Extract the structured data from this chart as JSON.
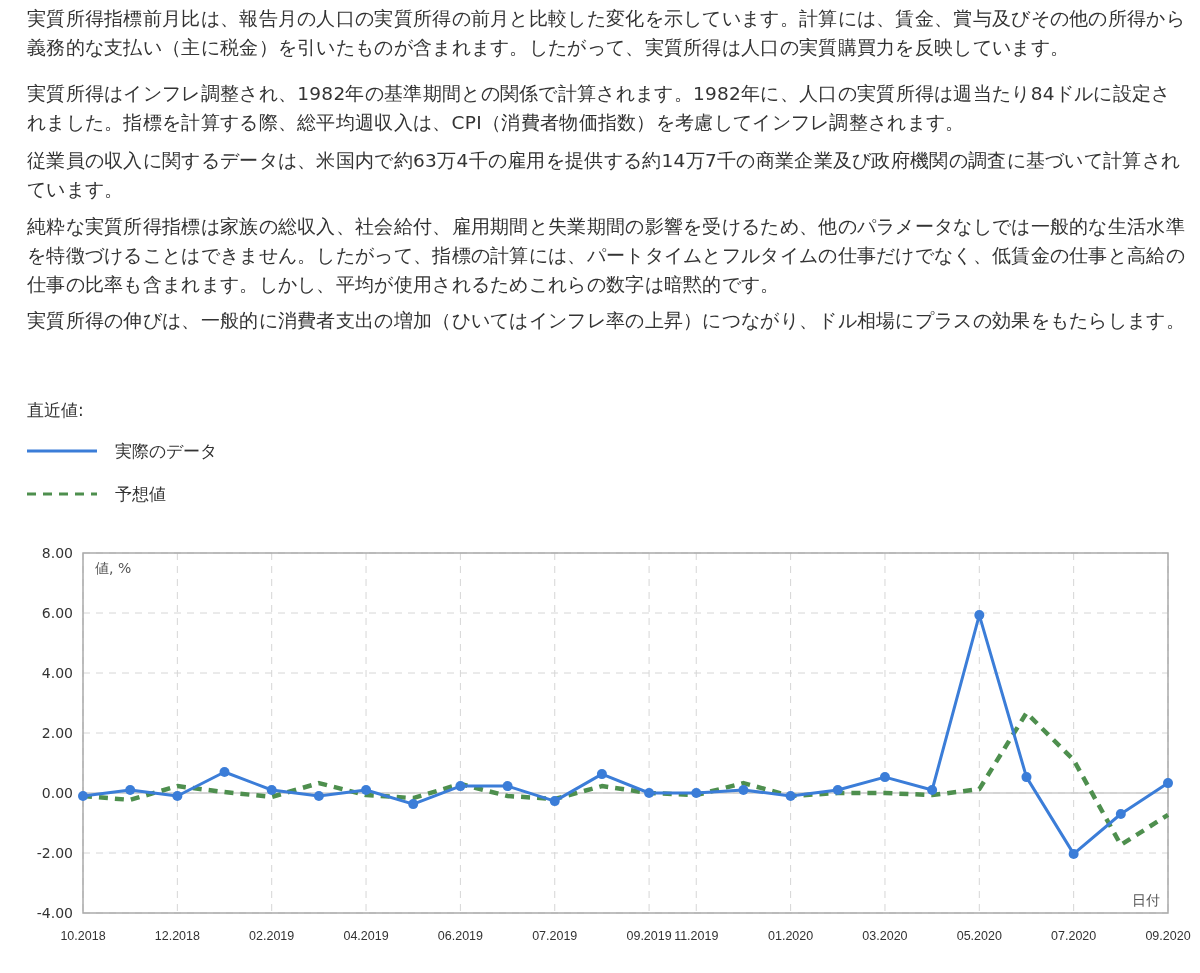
{
  "chart_data": {
    "type": "line",
    "annotations": [
      "実質所得指標前月比は、報告月の人口の実質所得の前月と比較した変化を示しています。計算には、賃金、賞与及びその他の所得から義務的な支払い（主に税金）を引いたものが含まれます。したがって、実質所得は人口の実質購買力を反映しています。",
      "実質所得はインフレ調整され、1982年の基準期間との関係で計算されます。1982年に、人口の実質所得は週当たり84ドルに設定されました。指標を計算する際、総平均週収入は、CPI（消費者物価指数）を考慮してインフレ調整されます。",
      "従業員の収入に関するデータは、米国内で約63万4千の雇用を提供する約14万7千の商業企業及び政府機関の調査に基づいて計算されています。",
      "純粋な実質所得指標は家族の総収入、社会給付、雇用期間と失業期間の影響を受けるため、他のパラメータなしでは一般的な生活水準を特徴づけることはできません。したがって、指標の計算には、パートタイムとフルタイムの仕事だけでなく、低賃金の仕事と高給の仕事の比率も含まれます。しかし、平均が使用されるためこれらの数字は暗黙的です。",
      "実質所得の伸びは、一般的に消費者支出の増加（ひいてはインフレ率の上昇）につながり、ドル相場にプラスの効果をもたらします。"
    ],
    "legend_title": "直近値:",
    "ylabel": "値, %",
    "xlabel": "日付",
    "categories": [
      "10.2018",
      null,
      "12.2018",
      null,
      "02.2019",
      null,
      "04.2019",
      null,
      "06.2019",
      null,
      "07.2019",
      null,
      "09.2019",
      "11.2019",
      null,
      "01.2020",
      null,
      "03.2020",
      null,
      "05.2020",
      null,
      "07.2020",
      null,
      "09.2020"
    ],
    "series": [
      {
        "name": "実際のデータ",
        "color": "#3b7dd8",
        "line_style": "solid",
        "marker": "circle",
        "values": [
          -0.1,
          0.1,
          -0.1,
          0.7,
          0.1,
          -0.1,
          0.1,
          -0.37,
          0.23,
          0.23,
          -0.27,
          0.63,
          0,
          0,
          0.1,
          -0.1,
          0.1,
          0.53,
          0.1,
          5.93,
          0.53,
          -2.03,
          -0.7,
          0.33
        ]
      },
      {
        "name": "予想値",
        "color": "#4e8f4e",
        "line_style": "dashed",
        "marker": "none",
        "values": [
          -0.1,
          -0.23,
          0.23,
          0.03,
          -0.13,
          0.33,
          -0.07,
          -0.17,
          0.3,
          -0.1,
          -0.2,
          0.23,
          0,
          -0.07,
          0.33,
          -0.1,
          0,
          0,
          -0.07,
          0.13,
          2.67,
          1.1,
          -1.73,
          -0.73
        ]
      }
    ],
    "ylim": [
      -4,
      8
    ],
    "yticks": [
      {
        "value": -4,
        "label": "-4.00"
      },
      {
        "value": -2,
        "label": "-2.00"
      },
      {
        "value": 0,
        "label": "0.00"
      },
      {
        "value": 2,
        "label": "2.00"
      },
      {
        "value": 4,
        "label": "4.00"
      },
      {
        "value": 6,
        "label": "6.00"
      },
      {
        "value": 8,
        "label": "8.00"
      }
    ],
    "ref_lines": [
      {
        "axis": "y",
        "value": 0,
        "color": "#cccccc"
      }
    ],
    "grid": true,
    "legend": "top left"
  }
}
